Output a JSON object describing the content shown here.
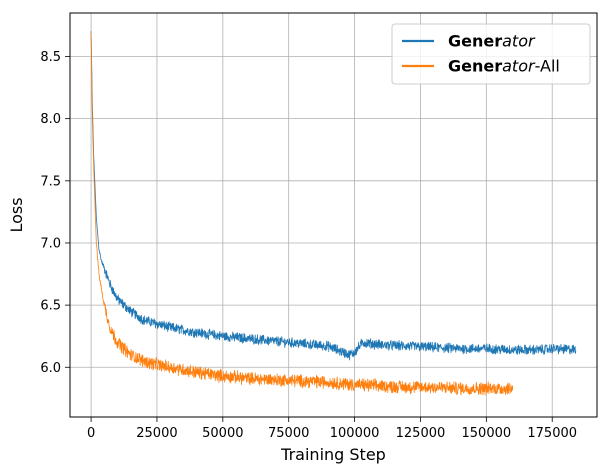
{
  "chart_data": {
    "type": "line",
    "xlabel": "Training Step",
    "ylabel": "Loss",
    "xlim": [
      -8000,
      192000
    ],
    "ylim": [
      5.6,
      8.85
    ],
    "xticks": [
      0,
      25000,
      50000,
      75000,
      100000,
      125000,
      150000,
      175000
    ],
    "xtick_labels": [
      "0",
      "25000",
      "50000",
      "75000",
      "100000",
      "125000",
      "150000",
      "175000"
    ],
    "yticks": [
      6.0,
      6.5,
      7.0,
      7.5,
      8.0,
      8.5
    ],
    "ytick_labels": [
      "6.0",
      "6.5",
      "7.0",
      "7.5",
      "8.0",
      "8.5"
    ],
    "grid": true,
    "legend_position": "top-right",
    "series": [
      {
        "name": "Generator",
        "name_bold": "Gener",
        "name_italic": "ator",
        "name_suffix": "",
        "color": "#1f77b4",
        "x": [
          0,
          500,
          1000,
          2000,
          3000,
          4000,
          5000,
          7500,
          10000,
          15000,
          20000,
          25000,
          30000,
          40000,
          50000,
          60000,
          70000,
          80000,
          90000,
          98000,
          100000,
          103000,
          110000,
          120000,
          130000,
          140000,
          150000,
          160000,
          170000,
          175000,
          184000
        ],
        "y": [
          8.7,
          8.1,
          7.7,
          7.2,
          6.95,
          6.85,
          6.8,
          6.65,
          6.55,
          6.45,
          6.38,
          6.35,
          6.32,
          6.28,
          6.25,
          6.23,
          6.21,
          6.19,
          6.17,
          6.1,
          6.12,
          6.2,
          6.18,
          6.17,
          6.16,
          6.15,
          6.15,
          6.14,
          6.14,
          6.15,
          6.14
        ],
        "noise": 0.035
      },
      {
        "name": "Generator-All",
        "name_bold": "Gener",
        "name_italic": "ator",
        "name_suffix": "-All",
        "color": "#ff7f0e",
        "x": [
          0,
          500,
          1000,
          2000,
          3000,
          4000,
          5000,
          7500,
          10000,
          15000,
          20000,
          25000,
          30000,
          40000,
          50000,
          60000,
          70000,
          80000,
          90000,
          100000,
          110000,
          120000,
          130000,
          140000,
          150000,
          160000
        ],
        "y": [
          8.7,
          8.0,
          7.6,
          7.0,
          6.75,
          6.62,
          6.5,
          6.3,
          6.2,
          6.1,
          6.05,
          6.02,
          6.0,
          5.96,
          5.93,
          5.91,
          5.9,
          5.89,
          5.88,
          5.86,
          5.85,
          5.84,
          5.84,
          5.83,
          5.83,
          5.83
        ],
        "noise": 0.045
      }
    ]
  }
}
